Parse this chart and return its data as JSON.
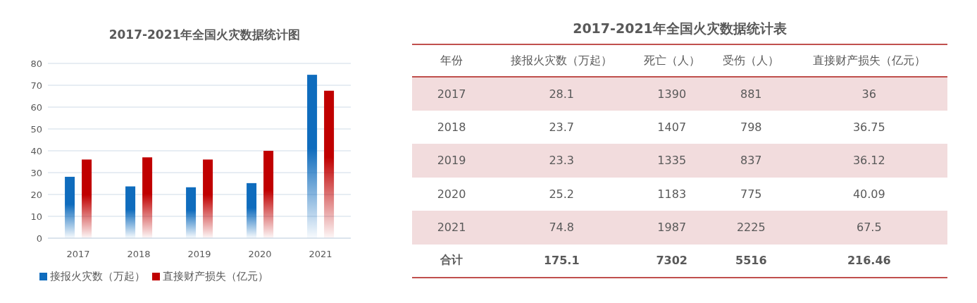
{
  "chart_data": [
    {
      "type": "bar",
      "title": "2017-2021年全国火灾数据统计图",
      "categories": [
        "2017",
        "2018",
        "2019",
        "2020",
        "2021"
      ],
      "series": [
        {
          "name": "接报火灾数（万起）",
          "color": "#0f6cbd",
          "values": [
            28.1,
            23.7,
            23.3,
            25.2,
            74.8
          ]
        },
        {
          "name": "直接财产损失（亿元）",
          "color": "#c00000",
          "values": [
            36,
            37,
            36,
            40,
            67.5
          ]
        }
      ],
      "ylim": [
        0,
        80
      ],
      "yticks": [
        0,
        10,
        20,
        30,
        40,
        50,
        60,
        70,
        80
      ],
      "grid": "y",
      "legend": "bottom"
    },
    {
      "type": "heatmap",
      "title": "2017-2021年全国火灾数据统计表",
      "ylabel": "年份",
      "categories": [
        "接报火灾数（万起）",
        "死亡（人）",
        "受伤（人）",
        "直接财产损失（亿元）"
      ],
      "y_categories": [
        "2017",
        "2018",
        "2019",
        "2020",
        "2021",
        "合计"
      ],
      "cells": [
        [
          28.1,
          1390,
          881,
          36
        ],
        [
          23.7,
          1407,
          798,
          36.75
        ],
        [
          23.3,
          1335,
          837,
          36.12
        ],
        [
          25.2,
          1183,
          775,
          40.09
        ],
        [
          74.8,
          1987,
          2225,
          67.5
        ],
        [
          175.1,
          7302,
          5516,
          216.46
        ]
      ],
      "data_labels": true
    }
  ]
}
